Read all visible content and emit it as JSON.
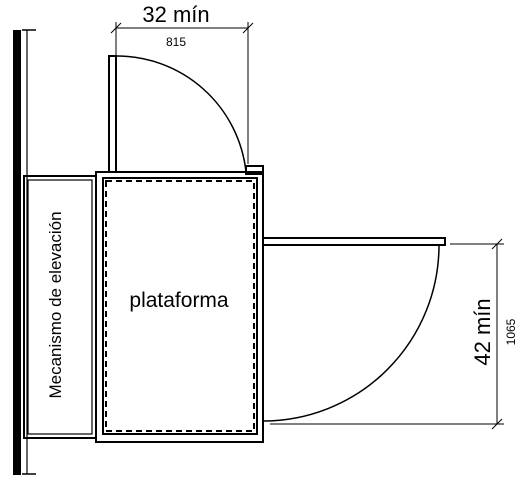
{
  "diagram": {
    "top_dimension": {
      "value_in": "32 mín",
      "value_mm": "815"
    },
    "side_dimension": {
      "value_in": "42 mín",
      "value_mm": "1065"
    },
    "labels": {
      "lift_mechanism": "Mecanismo de elevación",
      "platform": "plataforma"
    },
    "colors": {
      "line": "#000000",
      "background": "#ffffff"
    }
  }
}
